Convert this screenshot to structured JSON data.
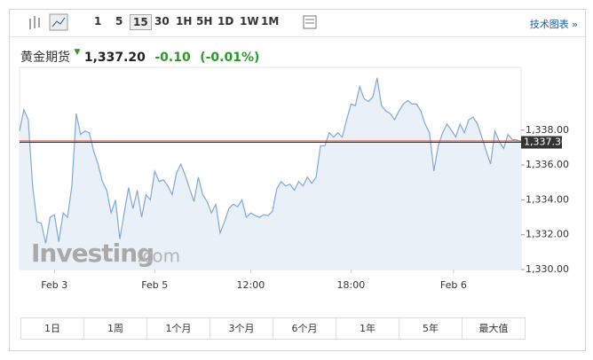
{
  "toolbar": {
    "intervals": [
      "1",
      "5",
      "15",
      "30",
      "1H",
      "5H",
      "1D",
      "1W",
      "1M"
    ],
    "active": 2,
    "link": "技术图表 »"
  },
  "quote": {
    "name": "黄金期货",
    "price": "1,337.20",
    "change": "-0.10",
    "change_pct": "(-0.01%)"
  },
  "chart_data": {
    "type": "area",
    "watermark": {
      "brand": "Investing",
      "suffix": ".com"
    },
    "series": [
      {
        "color": "#7fa9d6",
        "fill": "#e9f0f8",
        "values": [
          1337.95,
          1339.17,
          1338.6,
          1334.8,
          1332.75,
          1332.65,
          1331.5,
          1333.0,
          1333.15,
          1331.6,
          1333.25,
          1333.0,
          1334.8,
          1338.95,
          1337.75,
          1337.95,
          1337.85,
          1336.8,
          1336.05,
          1335.05,
          1334.55,
          1333.25,
          1334.0,
          1331.75,
          1333.25,
          1334.7,
          1333.5,
          1334.55,
          1333.0,
          1334.3,
          1334.0,
          1335.65,
          1335.05,
          1335.15,
          1334.8,
          1334.3,
          1335.55,
          1336.05,
          1335.4,
          1334.65,
          1333.9,
          1335.3,
          1334.3,
          1333.9,
          1333.25,
          1333.75,
          1332.1,
          1332.75,
          1333.5,
          1333.75,
          1333.6,
          1334.0,
          1333.0,
          1333.25,
          1333.1,
          1333.0,
          1333.15,
          1333.1,
          1333.35,
          1334.65,
          1335.05,
          1334.8,
          1334.9,
          1334.55,
          1335.05,
          1334.8,
          1335.3,
          1334.95,
          1335.3,
          1337.1,
          1337.1,
          1337.85,
          1337.6,
          1337.85,
          1337.6,
          1338.6,
          1339.5,
          1339.4,
          1340.5,
          1339.8,
          1339.65,
          1339.9,
          1341.0,
          1339.4,
          1339.1,
          1338.95,
          1338.6,
          1339.1,
          1339.5,
          1339.7,
          1339.5,
          1339.5,
          1339.1,
          1338.35,
          1337.85,
          1335.65,
          1337.1,
          1337.85,
          1338.35,
          1338.0,
          1337.6,
          1338.35,
          1337.85,
          1338.6,
          1338.75,
          1338.35,
          1337.6,
          1336.8,
          1336.05,
          1337.95,
          1337.35,
          1336.95,
          1337.75,
          1337.45,
          1337.45,
          1337.3
        ]
      }
    ],
    "xlim": [
      0,
      115
    ],
    "xticks": [
      {
        "value": 8,
        "label": "Feb 3"
      },
      {
        "value": 31,
        "label": "Feb 5"
      },
      {
        "value": 53,
        "label": "12:00"
      },
      {
        "value": 76,
        "label": "18:00"
      },
      {
        "value": 99.5,
        "label": "Feb 6"
      }
    ],
    "ylim": [
      1330,
      1341.6
    ],
    "yticks": [
      {
        "value": 1330,
        "label": "1,330.00"
      },
      {
        "value": 1332,
        "label": "1,332.00"
      },
      {
        "value": 1334,
        "label": "1,334.00"
      },
      {
        "value": 1336,
        "label": "1,336.00"
      },
      {
        "value": 1338,
        "label": "1,338.00"
      }
    ],
    "marker": {
      "value": 1337.3,
      "label": "1,337.30"
    }
  },
  "ranges": [
    "1日",
    "1周",
    "1个月",
    "3个月",
    "6个月",
    "1年",
    "5年",
    "最大值"
  ]
}
